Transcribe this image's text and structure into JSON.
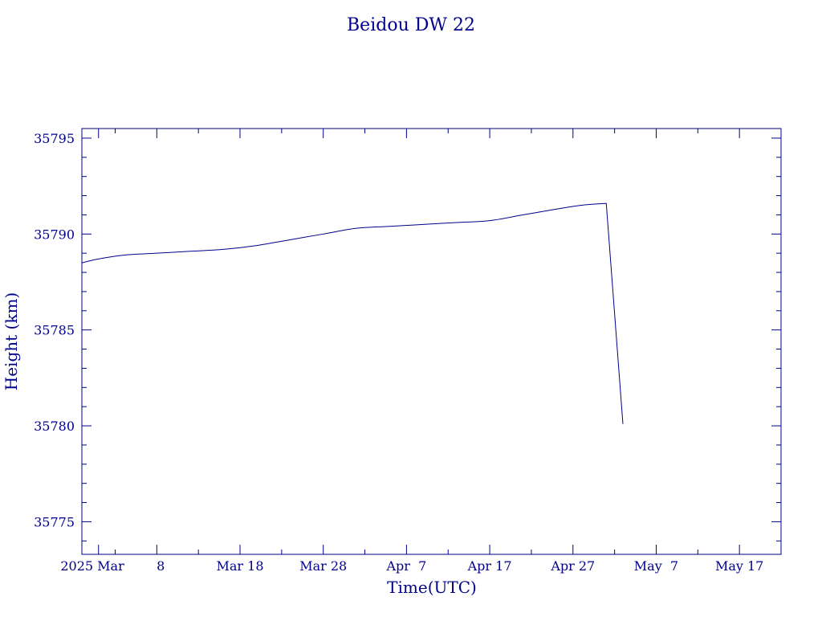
{
  "chart_data": {
    "type": "line",
    "title": "Beidou DW 22",
    "xlabel": "Time(UTC)",
    "ylabel": "Height (km)",
    "color": "#00008b",
    "background": "#ffffff",
    "grid": false,
    "ylim": [
      35773.3,
      35795.5
    ],
    "xlim": [
      "2025-02-27T00:00",
      "2025-05-22T00:00"
    ],
    "x_tick_labels": [
      {
        "label": "2025 Mar",
        "date": "2025-03-01"
      },
      {
        "label": "8",
        "date": "2025-03-08"
      },
      {
        "label": "Mar 18",
        "date": "2025-03-18"
      },
      {
        "label": "Mar 28",
        "date": "2025-03-28"
      },
      {
        "label": "Apr  7",
        "date": "2025-04-07"
      },
      {
        "label": "Apr 17",
        "date": "2025-04-17"
      },
      {
        "label": "Apr 27",
        "date": "2025-04-27"
      },
      {
        "label": "May  7",
        "date": "2025-05-07"
      },
      {
        "label": "May 17",
        "date": "2025-05-17"
      }
    ],
    "y_tick_labels": [
      {
        "label": "35775",
        "value": 35775
      },
      {
        "label": "35780",
        "value": 35780
      },
      {
        "label": "35785",
        "value": 35785
      },
      {
        "label": "35790",
        "value": 35790
      },
      {
        "label": "35795",
        "value": 35795
      }
    ],
    "series": [
      {
        "points": [
          {
            "x": "2025-02-27T00:00",
            "y": 35788.5
          },
          {
            "x": "2025-03-01T00:00",
            "y": 35788.7
          },
          {
            "x": "2025-03-04T00:00",
            "y": 35788.9
          },
          {
            "x": "2025-03-08T00:00",
            "y": 35789.0
          },
          {
            "x": "2025-03-12T00:00",
            "y": 35789.1
          },
          {
            "x": "2025-03-16T00:00",
            "y": 35789.2
          },
          {
            "x": "2025-03-20T00:00",
            "y": 35789.4
          },
          {
            "x": "2025-03-24T00:00",
            "y": 35789.7
          },
          {
            "x": "2025-03-28T00:00",
            "y": 35790.0
          },
          {
            "x": "2025-04-01T00:00",
            "y": 35790.3
          },
          {
            "x": "2025-04-05T00:00",
            "y": 35790.4
          },
          {
            "x": "2025-04-09T00:00",
            "y": 35790.5
          },
          {
            "x": "2025-04-13T00:00",
            "y": 35790.6
          },
          {
            "x": "2025-04-17T00:00",
            "y": 35790.7
          },
          {
            "x": "2025-04-21T00:00",
            "y": 35791.0
          },
          {
            "x": "2025-04-25T00:00",
            "y": 35791.3
          },
          {
            "x": "2025-04-28T00:00",
            "y": 35791.5
          },
          {
            "x": "2025-05-01T00:00",
            "y": 35791.6
          },
          {
            "x": "2025-05-03T00:00",
            "y": 35780.1
          }
        ]
      }
    ]
  }
}
